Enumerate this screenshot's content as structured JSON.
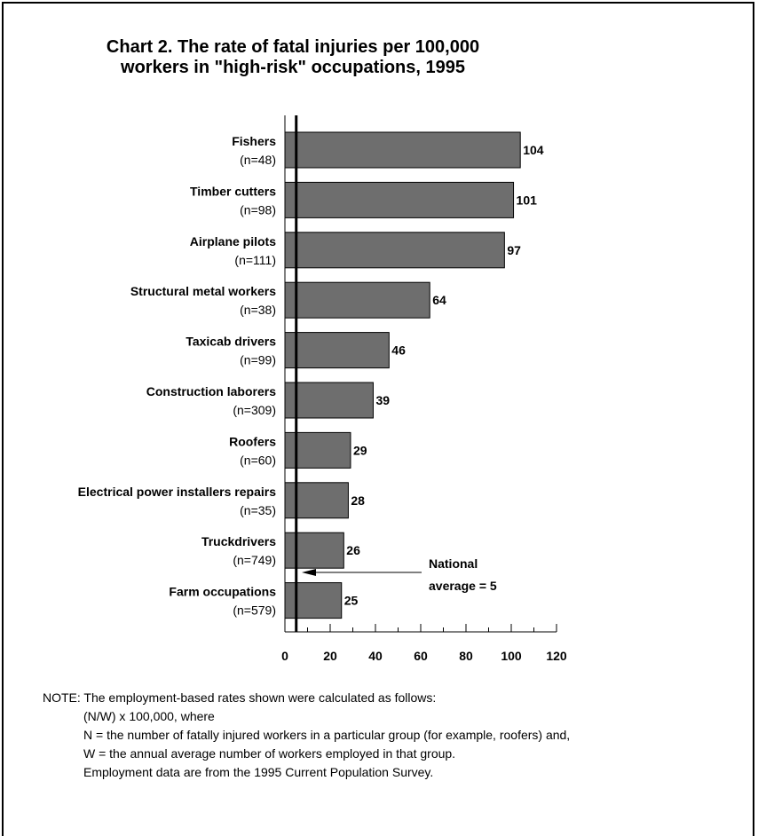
{
  "chart_data": {
    "type": "bar",
    "orientation": "horizontal",
    "title_lines": [
      "Chart 2.  The rate of fatal injuries per 100,000",
      "workers in \"high-risk\"  occupations, 1995"
    ],
    "categories": [
      {
        "name": "Fishers",
        "n": "(n=48)",
        "value": 104
      },
      {
        "name": "Timber cutters",
        "n": "(n=98)",
        "value": 101
      },
      {
        "name": "Airplane pilots",
        "n": "(n=111)",
        "value": 97
      },
      {
        "name": "Structural metal workers",
        "n": "(n=38)",
        "value": 64
      },
      {
        "name": "Taxicab drivers",
        "n": "(n=99)",
        "value": 46
      },
      {
        "name": "Construction laborers",
        "n": "(n=309)",
        "value": 39
      },
      {
        "name": "Roofers",
        "n": "(n=60)",
        "value": 29
      },
      {
        "name": "Electrical power installers repairs",
        "n": "(n=35)",
        "value": 28
      },
      {
        "name": "Truckdrivers",
        "n": "(n=749)",
        "value": 26
      },
      {
        "name": "Farm occupations",
        "n": "(n=579)",
        "value": 25
      }
    ],
    "xlim": [
      0,
      120
    ],
    "xticks": [
      0,
      20,
      40,
      60,
      80,
      100,
      120
    ],
    "reference_line": {
      "value": 5,
      "label_lines": [
        "National",
        "average = 5"
      ]
    },
    "bar_color": "#6e6e6e",
    "grid": false
  },
  "note": {
    "lines": [
      "NOTE:  The employment-based rates shown were calculated as follows:",
      "(N/W) x 100,000, where",
      "N = the number of fatally injured workers in a particular group (for example, roofers) and,",
      "W = the annual average number of workers employed in that group.",
      "Employment data are from the 1995 Current Population Survey."
    ]
  }
}
